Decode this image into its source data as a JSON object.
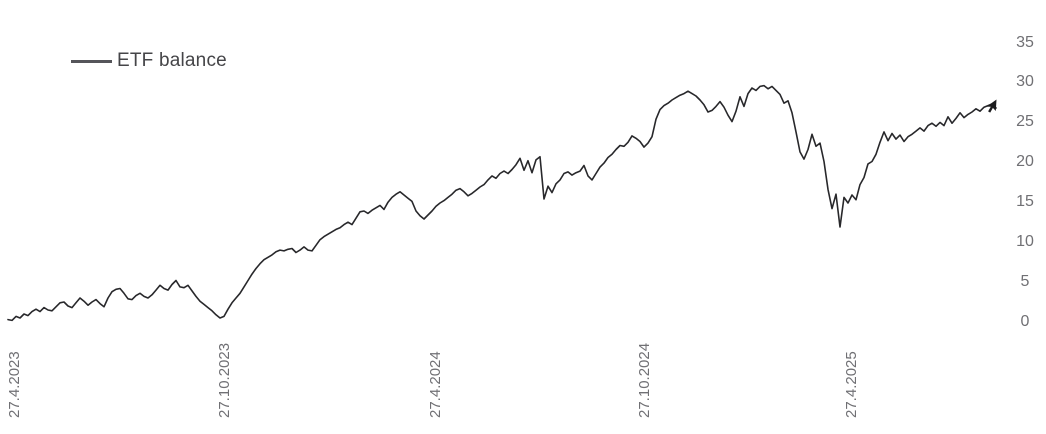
{
  "legend": {
    "label": "ETF balance"
  },
  "colors": {
    "line": "#28282b",
    "axis_label": "#707074",
    "legend_text": "#454548",
    "background": "#ffffff"
  },
  "chart_data": {
    "type": "line",
    "title": "",
    "xlabel": "",
    "ylabel": "",
    "ylim": [
      0,
      35
    ],
    "grid": false,
    "legend_position": "top-left",
    "y_ticks": [
      35,
      30,
      25,
      20,
      15,
      10,
      5,
      0
    ],
    "x_ticks": [
      {
        "label": "27.4.2023",
        "f": 0.007
      },
      {
        "label": "27.10.2023",
        "f": 0.22
      },
      {
        "label": "27.4.2024",
        "f": 0.433
      },
      {
        "label": "27.10.2024",
        "f": 0.645
      },
      {
        "label": "27.4.2025",
        "f": 0.854
      }
    ],
    "series": [
      {
        "name": "ETF balance",
        "values": [
          0.3,
          0.2,
          0.7,
          0.5,
          1.0,
          0.8,
          1.3,
          1.6,
          1.3,
          1.8,
          1.5,
          1.4,
          1.9,
          2.4,
          2.5,
          2.0,
          1.8,
          2.4,
          3.0,
          2.6,
          2.1,
          2.5,
          2.8,
          2.3,
          1.9,
          3.0,
          3.8,
          4.1,
          4.2,
          3.6,
          2.9,
          2.8,
          3.3,
          3.6,
          3.2,
          3.0,
          3.4,
          4.0,
          4.6,
          4.2,
          4.0,
          4.7,
          5.2,
          4.4,
          4.3,
          4.6,
          3.9,
          3.2,
          2.6,
          2.2,
          1.8,
          1.4,
          0.9,
          0.5,
          0.7,
          1.6,
          2.4,
          3.0,
          3.6,
          4.4,
          5.2,
          6.0,
          6.7,
          7.3,
          7.8,
          8.1,
          8.4,
          8.8,
          9.0,
          8.9,
          9.1,
          9.2,
          8.7,
          9.0,
          9.4,
          9.0,
          8.9,
          9.6,
          10.3,
          10.7,
          11.0,
          11.3,
          11.6,
          11.8,
          12.2,
          12.5,
          12.2,
          13.0,
          13.8,
          13.9,
          13.6,
          14.0,
          14.3,
          14.6,
          14.1,
          15.0,
          15.6,
          16.0,
          16.3,
          15.9,
          15.5,
          15.1,
          13.9,
          13.3,
          12.9,
          13.4,
          13.9,
          14.5,
          14.9,
          15.2,
          15.6,
          16.0,
          16.5,
          16.7,
          16.3,
          15.8,
          16.1,
          16.5,
          16.9,
          17.2,
          17.8,
          18.3,
          18.0,
          18.6,
          18.9,
          18.6,
          19.1,
          19.7,
          20.5,
          19.0,
          20.2,
          18.7,
          20.3,
          20.7,
          15.4,
          17.0,
          16.2,
          17.3,
          17.8,
          18.6,
          18.8,
          18.4,
          18.7,
          18.9,
          19.6,
          18.3,
          17.8,
          18.6,
          19.4,
          19.9,
          20.6,
          21.0,
          21.6,
          22.1,
          22.0,
          22.5,
          23.3,
          23.0,
          22.6,
          21.9,
          22.4,
          23.2,
          25.4,
          26.6,
          27.1,
          27.4,
          27.8,
          28.1,
          28.4,
          28.6,
          28.9,
          28.6,
          28.3,
          27.8,
          27.2,
          26.3,
          26.5,
          27.0,
          27.6,
          26.9,
          25.9,
          25.1,
          26.4,
          28.2,
          27.0,
          28.6,
          29.3,
          29.0,
          29.5,
          29.6,
          29.2,
          29.5,
          29.0,
          28.5,
          27.4,
          27.7,
          26.2,
          23.8,
          21.3,
          20.4,
          21.6,
          23.5,
          22.0,
          22.4,
          20.1,
          16.6,
          14.2,
          16.0,
          11.9,
          15.6,
          14.9,
          15.9,
          15.3,
          17.2,
          18.1,
          19.8,
          20.1,
          21.0,
          22.5,
          23.8,
          22.7,
          23.6,
          22.9,
          23.4,
          22.6,
          23.2,
          23.5,
          23.9,
          24.3,
          23.9,
          24.6,
          24.9,
          24.5,
          25.0,
          24.6,
          25.7,
          24.9,
          25.5,
          26.2,
          25.6,
          26.0,
          26.3,
          26.7,
          26.4,
          26.9,
          27.1,
          27.3,
          26.8
        ]
      }
    ]
  }
}
